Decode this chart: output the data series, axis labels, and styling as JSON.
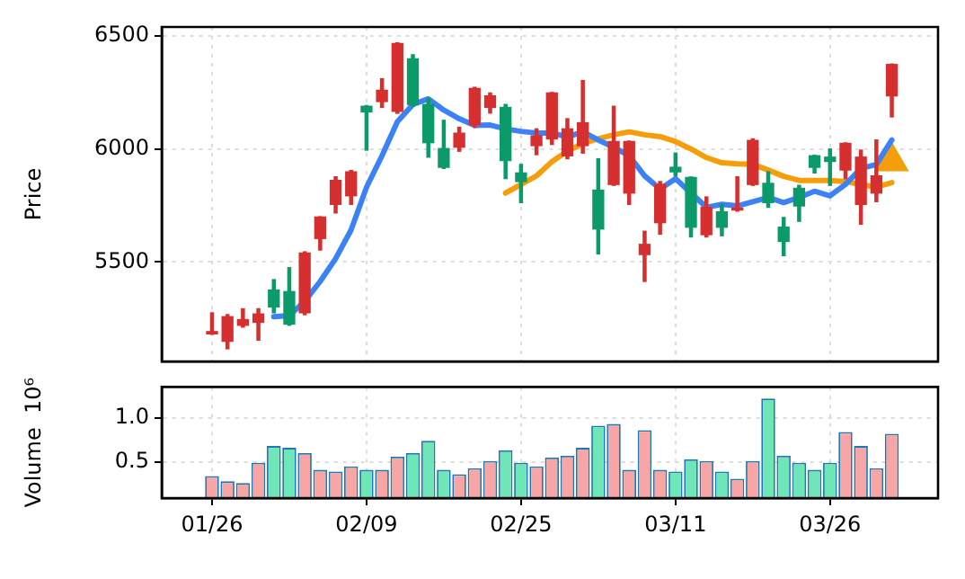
{
  "chart_data": [
    {
      "type": "candlestick",
      "ylabel": "Price",
      "tick_labels": "y",
      "grid": true,
      "legend": false,
      "categories": [
        null,
        null,
        null,
        null,
        null,
        null,
        null,
        null,
        null,
        null,
        null,
        null,
        null,
        null,
        null,
        null,
        null,
        null,
        null,
        null,
        null,
        null,
        null,
        null,
        null,
        null,
        null,
        null,
        null,
        null,
        null,
        null,
        null,
        null,
        null,
        null,
        null,
        null,
        null,
        null,
        null,
        null,
        null,
        null,
        null
      ],
      "ylim": [
        5060,
        6540
      ],
      "yticks": [
        5500,
        6000,
        6500
      ],
      "ohlc": [
        [
          5182,
          5275,
          5180,
          5192
        ],
        [
          5149,
          5267,
          5116,
          5258
        ],
        [
          5220,
          5293,
          5212,
          5245
        ],
        [
          5233,
          5293,
          5154,
          5270
        ],
        [
          5376,
          5422,
          5275,
          5301
        ],
        [
          5369,
          5475,
          5220,
          5225
        ],
        [
          5275,
          5545,
          5267,
          5540
        ],
        [
          5604,
          5700,
          5553,
          5699
        ],
        [
          5755,
          5877,
          5717,
          5861
        ],
        [
          5793,
          5905,
          5755,
          5899
        ],
        [
          6189,
          6192,
          5995,
          6164
        ],
        [
          6210,
          6311,
          6184,
          6260
        ],
        [
          6167,
          6470,
          6158,
          6467
        ],
        [
          6399,
          6417,
          6190,
          6197
        ],
        [
          6197,
          6222,
          5964,
          6028
        ],
        [
          6002,
          6127,
          5914,
          5919
        ],
        [
          6008,
          6096,
          5990,
          6070
        ],
        [
          6108,
          6273,
          6096,
          6268
        ],
        [
          6184,
          6248,
          6159,
          6235
        ],
        [
          6184,
          6197,
          5869,
          5949
        ],
        [
          5894,
          5932,
          5763,
          5856
        ],
        [
          6015,
          6089,
          5975,
          6058
        ],
        [
          6045,
          6250,
          6020,
          6248
        ],
        [
          5970,
          6134,
          5957,
          6089
        ],
        [
          6015,
          6303,
          5982,
          6116
        ],
        [
          5818,
          5957,
          5536,
          5646
        ],
        [
          5843,
          6189,
          5839,
          6033
        ],
        [
          5805,
          6035,
          5755,
          6033
        ],
        [
          5533,
          5636,
          5414,
          5578
        ],
        [
          5674,
          5856,
          5623,
          5843
        ],
        [
          5919,
          5982,
          5881,
          5899
        ],
        [
          5874,
          5876,
          5611,
          5654
        ],
        [
          5621,
          5788,
          5611,
          5742
        ],
        [
          5722,
          5755,
          5616,
          5654
        ],
        [
          5730,
          5877,
          5725,
          5737
        ],
        [
          5843,
          6045,
          5839,
          6038
        ],
        [
          5848,
          5899,
          5742,
          5763
        ],
        [
          5654,
          5697,
          5528,
          5591
        ],
        [
          5826,
          5839,
          5680,
          5748
        ],
        [
          5970,
          5972,
          5894,
          5919
        ],
        [
          5964,
          6000,
          5839,
          5945
        ],
        [
          5907,
          6027,
          5869,
          6025
        ],
        [
          5755,
          5995,
          5667,
          5964
        ],
        [
          5805,
          6040,
          5767,
          5881
        ],
        [
          6235,
          6376,
          6142,
          6374
        ]
      ],
      "colors": [
        "#d62f2f",
        "#d62f2f",
        "#d62f2f",
        "#d62f2f",
        "#0c9a6a",
        "#0c9a6a",
        "#d62f2f",
        "#d62f2f",
        "#d62f2f",
        "#d62f2f",
        "#0c9a6a",
        "#d62f2f",
        "#d62f2f",
        "#0c9a6a",
        "#0c9a6a",
        "#0c9a6a",
        "#d62f2f",
        "#d62f2f",
        "#d62f2f",
        "#0c9a6a",
        "#0c9a6a",
        "#d62f2f",
        "#d62f2f",
        "#d62f2f",
        "#d62f2f",
        "#0c9a6a",
        "#d62f2f",
        "#d62f2f",
        "#d62f2f",
        "#d62f2f",
        "#0c9a6a",
        "#0c9a6a",
        "#d62f2f",
        "#0c9a6a",
        "#d62f2f",
        "#d62f2f",
        "#0c9a6a",
        "#0c9a6a",
        "#0c9a6a",
        "#0c9a6a",
        "#0c9a6a",
        "#d62f2f",
        "#d62f2f",
        "#d62f2f",
        "#d62f2f"
      ],
      "series": [
        {
          "type": "line",
          "color": "#3b82f6",
          "marker": "none",
          "values": [
            null,
            null,
            null,
            null,
            5258,
            5263,
            5326,
            5414,
            5515,
            5642,
            5831,
            5970,
            6121,
            6197,
            6222,
            6172,
            6134,
            6104,
            6106,
            6089,
            6078,
            6071,
            6071,
            6053,
            6076,
            6040,
            6008,
            5970,
            5881,
            5823,
            5869,
            5805,
            5742,
            5755,
            5748,
            5767,
            5786,
            5763,
            5786,
            5813,
            5793,
            5843,
            5914,
            5932,
            6040
          ]
        },
        {
          "type": "line",
          "color": "#f59e0b",
          "marker": "none",
          "values": [
            null,
            null,
            null,
            null,
            null,
            null,
            null,
            null,
            null,
            null,
            null,
            null,
            null,
            null,
            null,
            null,
            null,
            null,
            null,
            5805,
            5843,
            5881,
            5944,
            5990,
            6025,
            6045,
            6063,
            6076,
            6063,
            6055,
            6033,
            6000,
            5962,
            5939,
            5934,
            5932,
            5907,
            5879,
            5861,
            5861,
            5861,
            5856,
            5843,
            5831,
            5851
          ]
        },
        {
          "type": "scatter",
          "color": "#f59e0b",
          "marker": "triangle",
          "values": [
            null,
            null,
            null,
            null,
            null,
            null,
            null,
            null,
            null,
            null,
            null,
            null,
            null,
            null,
            null,
            null,
            null,
            null,
            null,
            null,
            null,
            null,
            null,
            null,
            null,
            null,
            null,
            null,
            null,
            null,
            null,
            null,
            null,
            null,
            null,
            null,
            null,
            null,
            null,
            null,
            null,
            null,
            null,
            null,
            5945
          ]
        }
      ]
    },
    {
      "type": "bar",
      "ylabel": "Volume  10⁶",
      "grid": true,
      "legend": false,
      "categories": [
        "01/26",
        null,
        null,
        null,
        null,
        null,
        null,
        null,
        null,
        null,
        "02/09",
        null,
        null,
        null,
        null,
        null,
        null,
        null,
        null,
        null,
        "02/25",
        null,
        null,
        null,
        null,
        null,
        null,
        null,
        null,
        null,
        "03/11",
        null,
        null,
        null,
        null,
        null,
        null,
        null,
        null,
        null,
        "03/26",
        null,
        null,
        null,
        null
      ],
      "ylim": [
        0.09,
        1.35
      ],
      "yticks": [
        0.5,
        {
          "value": 1,
          "label": "1.0"
        }
      ],
      "values": [
        0.34,
        0.28,
        0.26,
        0.49,
        0.68,
        0.66,
        0.6,
        0.41,
        0.39,
        0.45,
        0.41,
        0.41,
        0.56,
        0.6,
        0.74,
        0.41,
        0.36,
        0.43,
        0.51,
        0.63,
        0.49,
        0.45,
        0.55,
        0.57,
        0.66,
        0.91,
        0.93,
        0.41,
        0.86,
        0.41,
        0.39,
        0.53,
        0.51,
        0.39,
        0.31,
        0.51,
        1.22,
        0.57,
        0.49,
        0.41,
        0.49,
        0.84,
        0.68,
        0.43,
        0.82
      ],
      "colors": [
        "#f7a5a5",
        "#f7a5a5",
        "#f7a5a5",
        "#f7a5a5",
        "#6ee6b8",
        "#6ee6b8",
        "#f7a5a5",
        "#f7a5a5",
        "#f7a5a5",
        "#f7a5a5",
        "#6ee6b8",
        "#f7a5a5",
        "#f7a5a5",
        "#6ee6b8",
        "#6ee6b8",
        "#6ee6b8",
        "#f7a5a5",
        "#f7a5a5",
        "#f7a5a5",
        "#6ee6b8",
        "#6ee6b8",
        "#f7a5a5",
        "#f7a5a5",
        "#f7a5a5",
        "#f7a5a5",
        "#6ee6b8",
        "#f7a5a5",
        "#f7a5a5",
        "#f7a5a5",
        "#f7a5a5",
        "#6ee6b8",
        "#6ee6b8",
        "#f7a5a5",
        "#6ee6b8",
        "#f7a5a5",
        "#f7a5a5",
        "#6ee6b8",
        "#6ee6b8",
        "#6ee6b8",
        "#6ee6b8",
        "#6ee6b8",
        "#f7a5a5",
        "#f7a5a5",
        "#f7a5a5",
        "#f7a5a5"
      ]
    }
  ]
}
